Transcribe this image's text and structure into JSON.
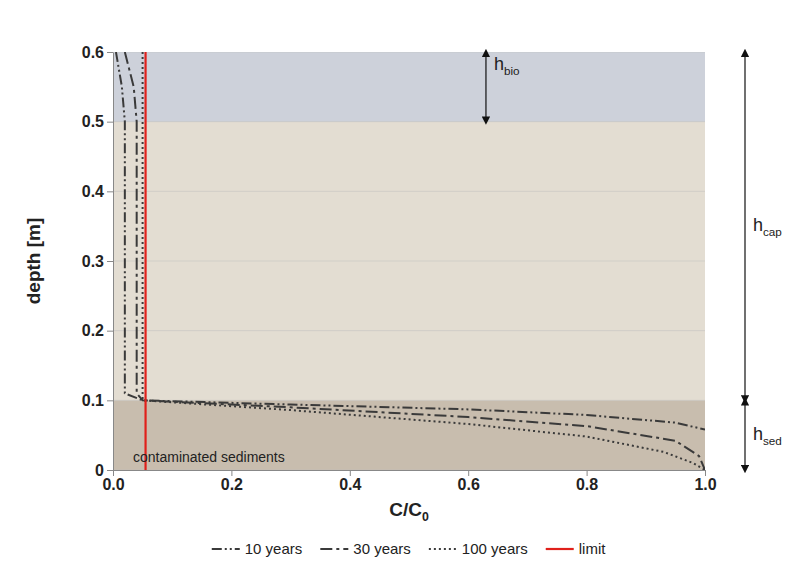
{
  "chart_data": {
    "type": "line",
    "x_label": "C/C0",
    "y_label": "depth [m]",
    "xlim": [
      0,
      1
    ],
    "ylim": [
      0,
      0.6
    ],
    "xticks": [
      {
        "value": 0,
        "label": "0.0"
      },
      0.2,
      0.4,
      0.6,
      0.8,
      {
        "value": 1,
        "label": "1.0"
      }
    ],
    "yticks": [
      0,
      0.1,
      0.2,
      0.3,
      0.4,
      0.5,
      0.6
    ],
    "grid": true,
    "legend": "bottom",
    "series": [
      {
        "name": "10 years",
        "color": "#3a3a3a",
        "line_style": "dashdotdot",
        "x": [
          0.005,
          0.015,
          0.02,
          0.02,
          0.02,
          0.02,
          0.02,
          0.05,
          0.3,
          0.6,
          0.8,
          0.95,
          1.0
        ],
        "values": [
          0.6,
          0.55,
          0.5,
          0.4,
          0.3,
          0.2,
          0.11,
          0.1,
          0.094,
          0.087,
          0.079,
          0.068,
          0.058
        ]
      },
      {
        "name": "30 years",
        "color": "#3a3a3a",
        "line_style": "dashdot",
        "x": [
          0.02,
          0.035,
          0.04,
          0.04,
          0.04,
          0.04,
          0.04,
          0.05,
          0.3,
          0.6,
          0.8,
          0.95,
          0.99,
          1.0
        ],
        "values": [
          0.6,
          0.55,
          0.5,
          0.4,
          0.3,
          0.2,
          0.11,
          0.1,
          0.09,
          0.076,
          0.063,
          0.042,
          0.02,
          0.0
        ]
      },
      {
        "name": "100 years",
        "color": "#3a3a3a",
        "line_style": "dotted",
        "x": [
          0.05,
          0.05,
          0.05,
          0.05,
          0.05,
          0.05,
          0.3,
          0.6,
          0.8,
          0.93,
          0.98,
          1.0
        ],
        "values": [
          0.6,
          0.5,
          0.4,
          0.3,
          0.2,
          0.1,
          0.086,
          0.066,
          0.048,
          0.026,
          0.01,
          0.0
        ]
      },
      {
        "name": "limit",
        "color": "#e0201b",
        "line_style": "solid",
        "x": [
          0.055,
          0.055
        ],
        "values": [
          0,
          0.6
        ]
      }
    ],
    "zones": [
      {
        "label": "hcap",
        "from": 0.1,
        "to": 0.6,
        "color": "#e3ddd2"
      },
      {
        "label": "hbio",
        "from": 0.5,
        "to": 0.6,
        "color": "#cdd1da"
      },
      {
        "label": "hsed",
        "from": 0,
        "to": 0.1,
        "color": "#c8bdae"
      }
    ],
    "annotations": [
      {
        "text": "contaminated sediments"
      }
    ]
  }
}
